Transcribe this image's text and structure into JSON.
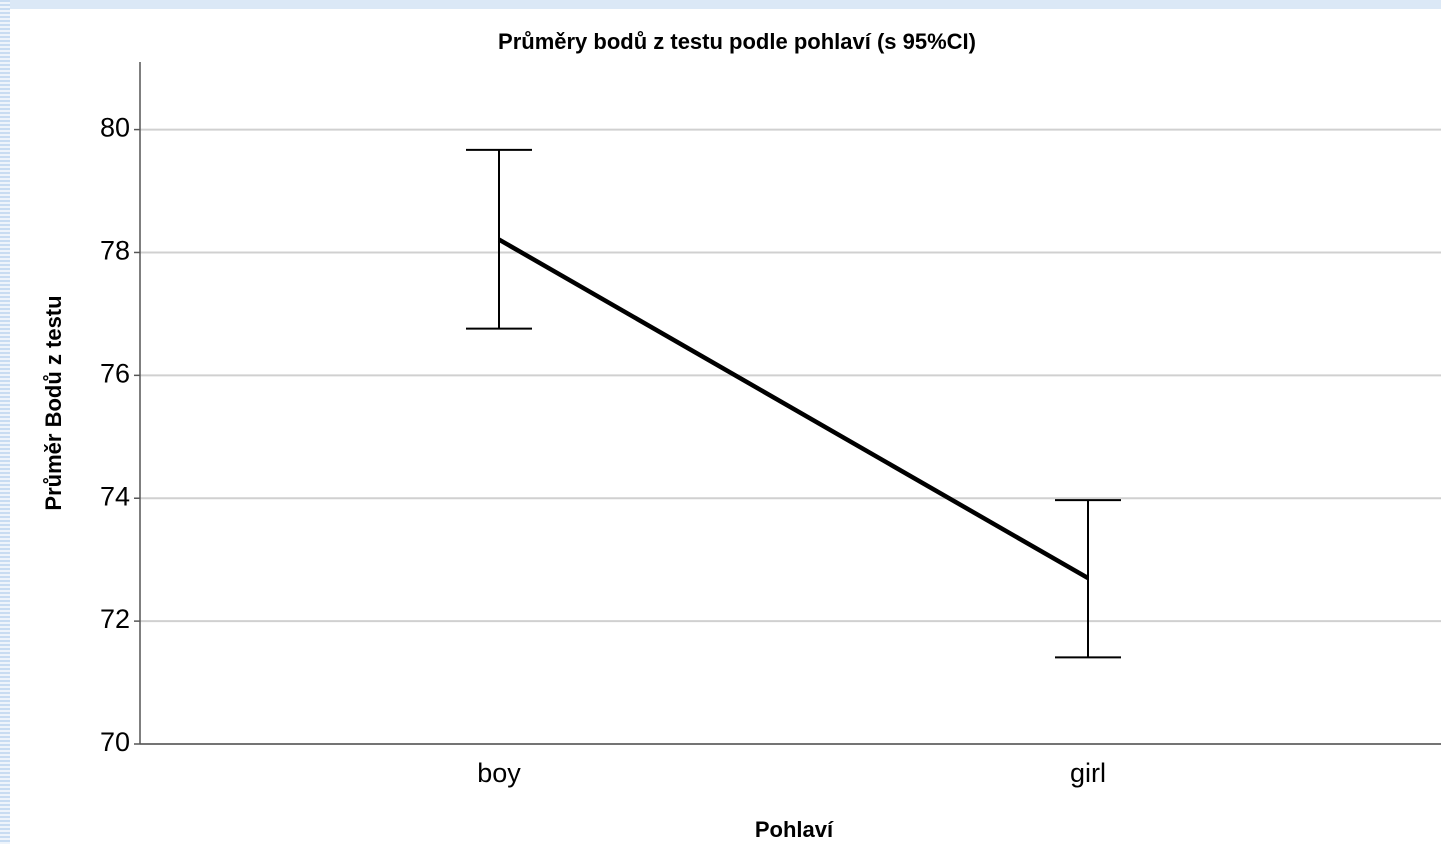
{
  "chart_data": {
    "type": "line",
    "title": "Průměry bodů z testu podle pohlaví (s 95%CI)",
    "x_label": "Pohlaví",
    "y_label": "Průměr Bodů z testu",
    "categories": [
      "boy",
      "girl"
    ],
    "values": [
      78.21,
      72.7
    ],
    "ci_lower": [
      76.76,
      71.41
    ],
    "ci_upper": [
      79.67,
      73.97
    ],
    "color": "#000000",
    "ylim": [
      70,
      81.1
    ],
    "yticks": [
      70,
      72,
      74,
      76,
      78,
      80
    ],
    "grid": true
  }
}
